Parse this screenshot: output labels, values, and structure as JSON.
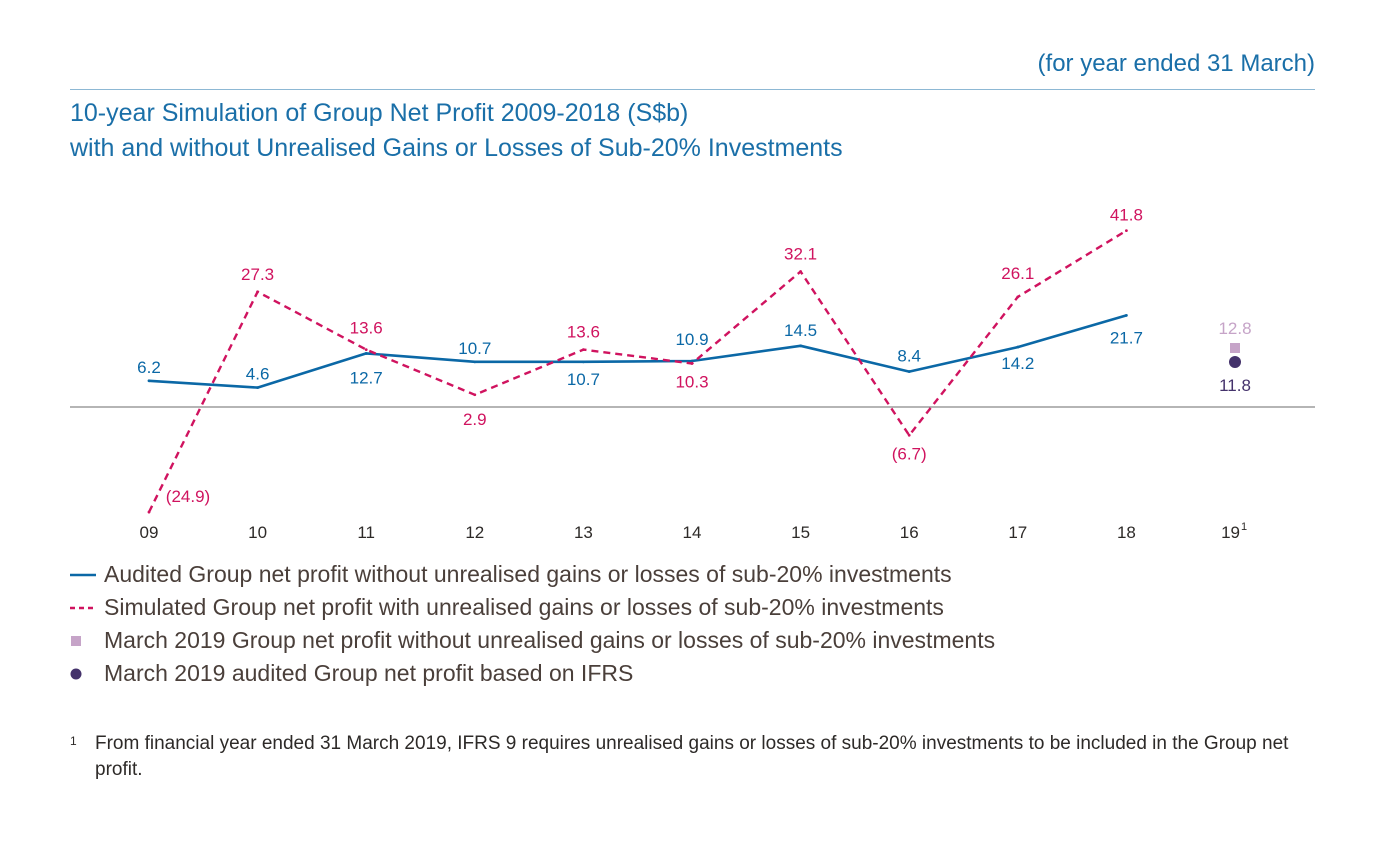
{
  "header": {
    "note": "(for year ended 31 March)",
    "title_line1": "10-year Simulation of Group Net Profit 2009-2018 (S$b)",
    "title_line2": "with and without Unrealised Gains or Losses of Sub-20% Investments"
  },
  "chart_data": {
    "type": "line",
    "categories": [
      "09",
      "10",
      "11",
      "12",
      "13",
      "14",
      "15",
      "16",
      "17",
      "18",
      "19"
    ],
    "category_superscript": {
      "19": "1"
    },
    "series": [
      {
        "key": "audited",
        "values": [
          6.2,
          4.6,
          12.7,
          10.7,
          10.7,
          10.9,
          14.5,
          8.4,
          14.2,
          21.7,
          null
        ],
        "labels": [
          "6.2",
          "4.6",
          "12.7",
          "10.7",
          "10.7",
          "10.9",
          "14.5",
          "8.4",
          "14.2",
          "21.7",
          null
        ],
        "color": "#0b68a6",
        "style": "solid"
      },
      {
        "key": "simulated",
        "values": [
          -24.9,
          27.3,
          13.6,
          2.9,
          13.6,
          10.3,
          32.1,
          -6.7,
          26.1,
          41.8,
          null
        ],
        "labels": [
          "(24.9)",
          "27.3",
          "13.6",
          "2.9",
          "13.6",
          "10.3",
          "32.1",
          "(6.7)",
          "26.1",
          "41.8",
          null
        ],
        "color": "#d0135f",
        "style": "dashed"
      }
    ],
    "points": [
      {
        "key": "mar2019-without",
        "category": "19",
        "value": 12.8,
        "label": "12.8",
        "marker": "square",
        "color": "#c6a4c8"
      },
      {
        "key": "mar2019-ifrs",
        "category": "19",
        "value": 11.8,
        "label": "11.8",
        "marker": "circle",
        "color": "#44326b"
      }
    ],
    "legend": [
      {
        "marker": "line-solid",
        "color": "#0b68a6",
        "label": "Audited Group net profit without unrealised gains or losses of sub-20% investments"
      },
      {
        "marker": "line-dashed",
        "color": "#d0135f",
        "label": "Simulated Group net profit with unrealised gains or losses of sub-20% investments"
      },
      {
        "marker": "square",
        "color": "#c6a4c8",
        "label": "March 2019 Group net profit without unrealised gains or losses of sub-20% investments"
      },
      {
        "marker": "circle",
        "color": "#44326b",
        "label": "March 2019 audited Group net profit based on IFRS"
      }
    ],
    "legend_placement": "bottom",
    "ylim": [
      -26,
      44
    ],
    "zero_line": true,
    "grid": false
  },
  "footnote": {
    "mark": "1",
    "text": "From financial year ended 31 March 2019, IFRS 9 requires unrealised gains or losses of sub-20% investments to be included in the Group net profit."
  }
}
